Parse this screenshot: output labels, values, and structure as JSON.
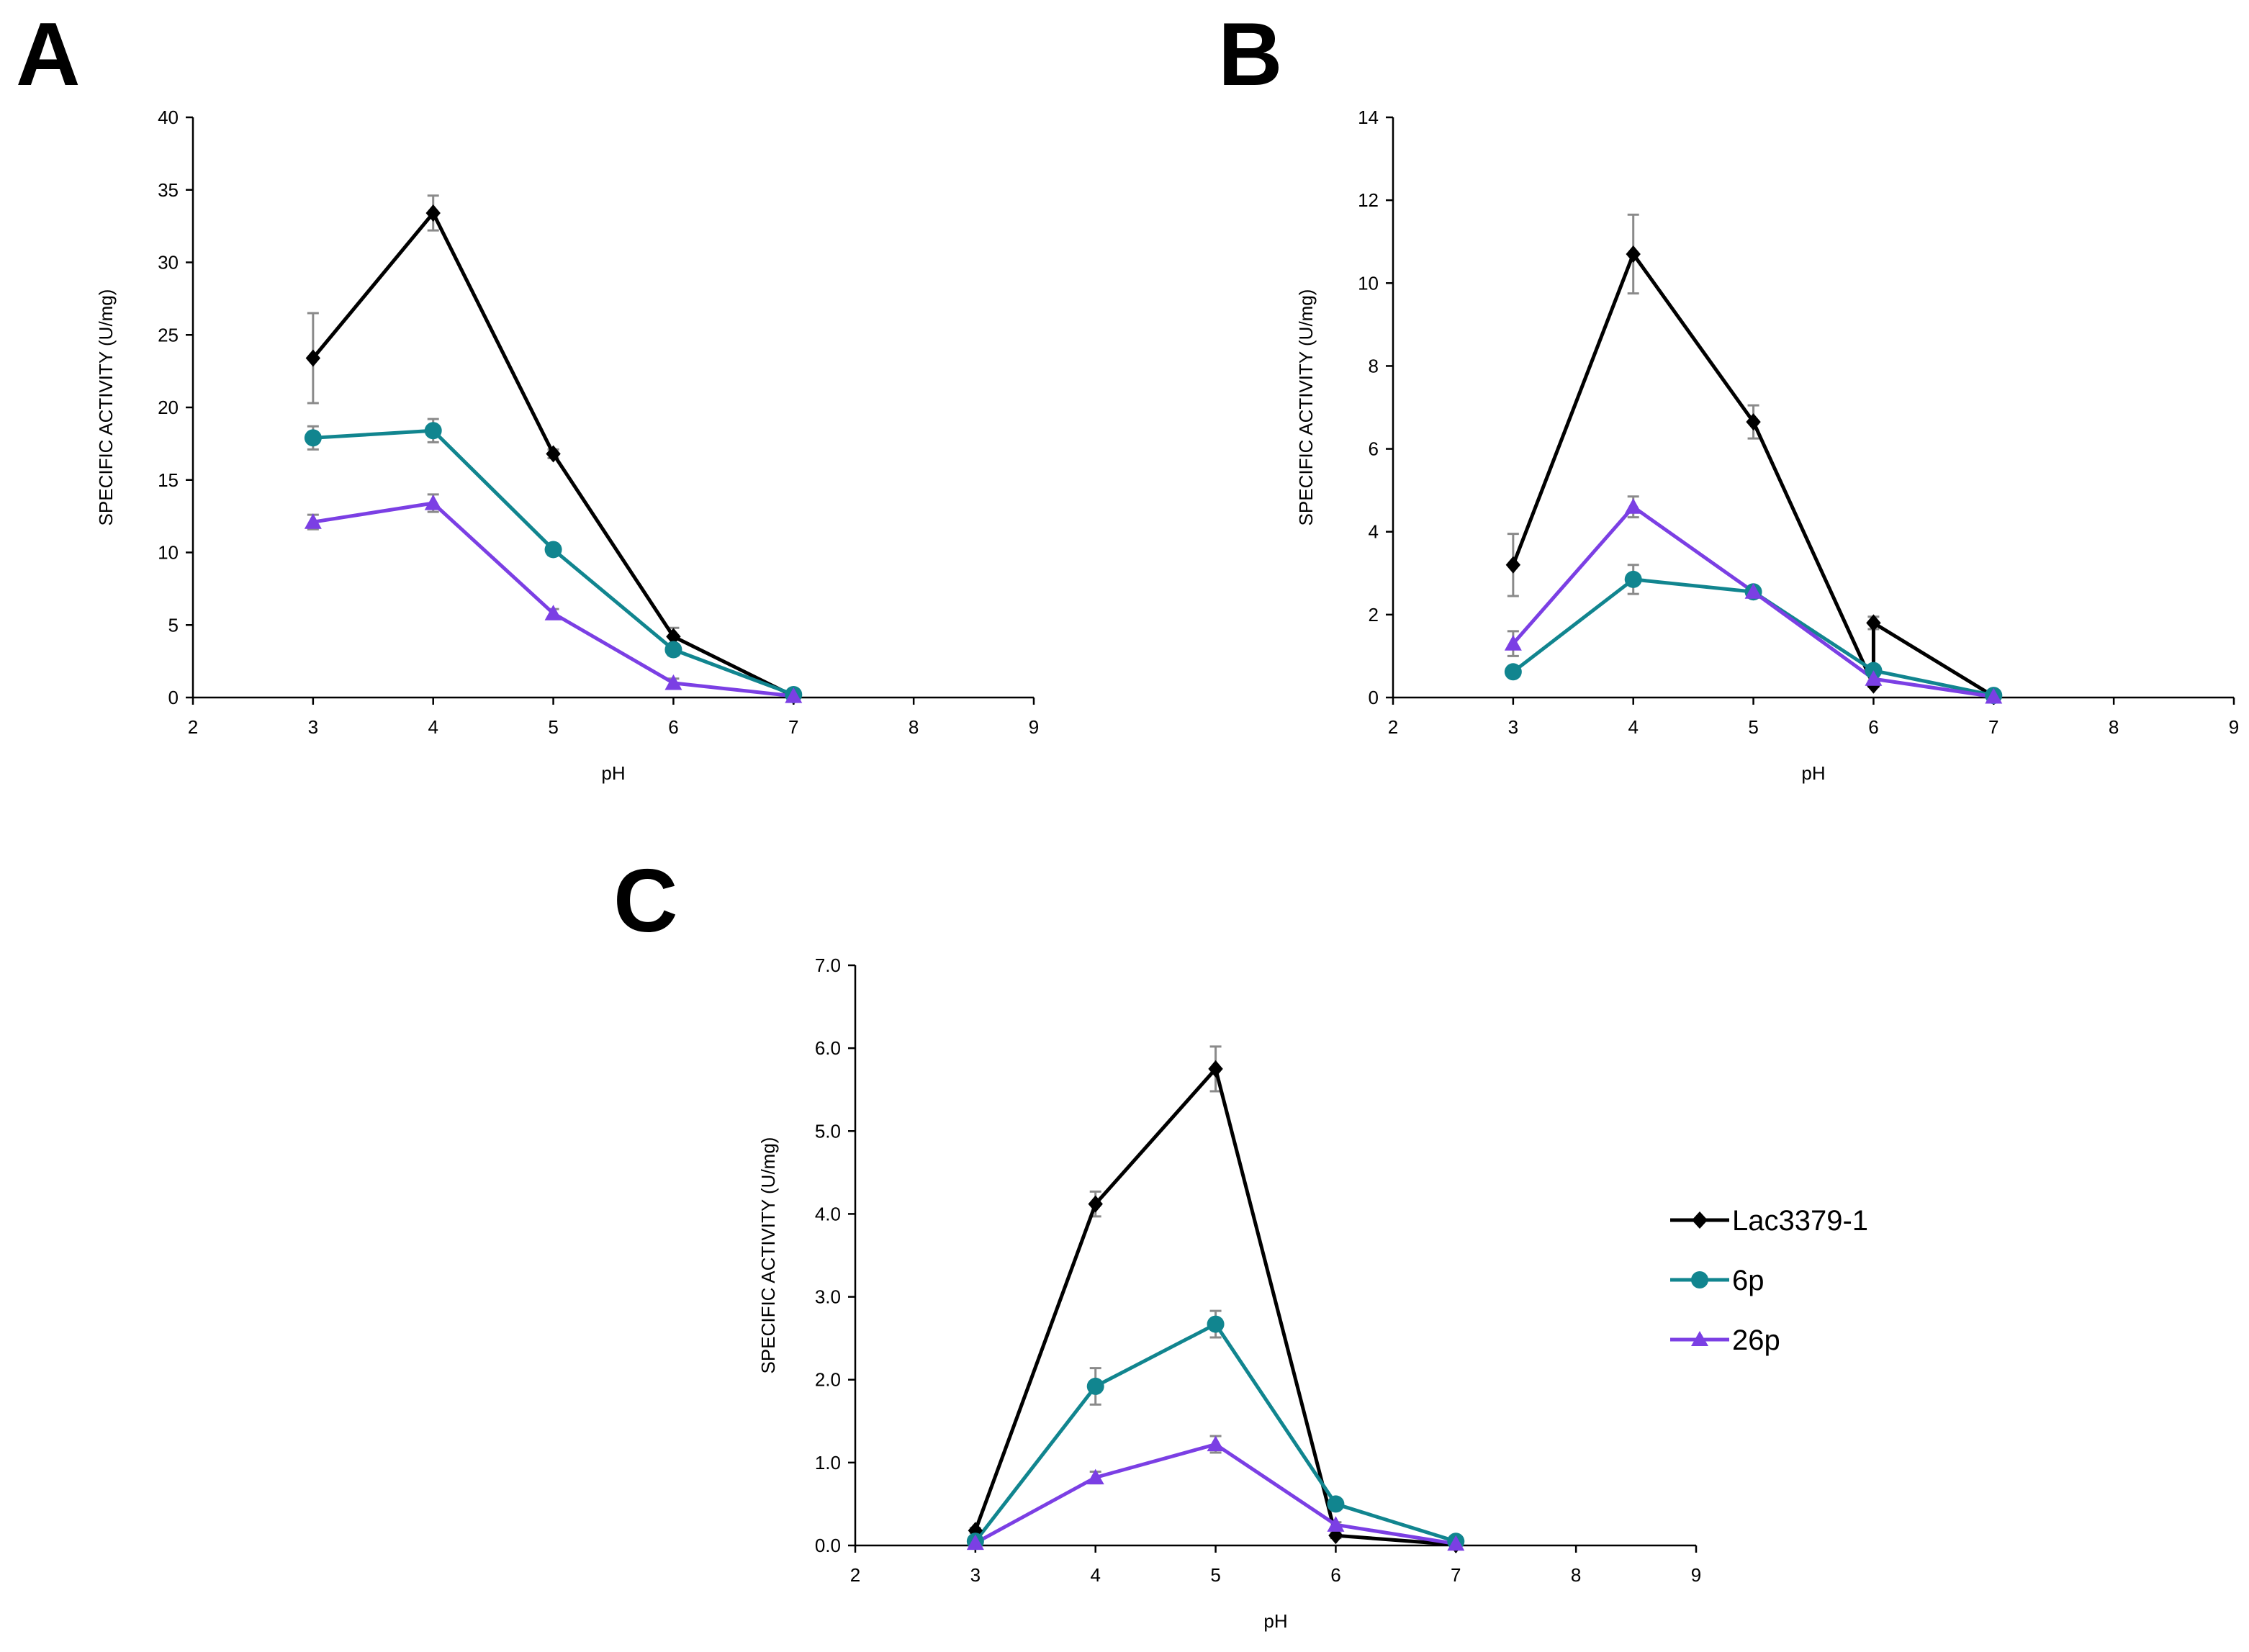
{
  "colors": {
    "Lac3379-1": "#000000",
    "6p": "#11858f",
    "26p": "#7b3fe4"
  },
  "legend": [
    {
      "name": "Lac3379-1",
      "marker": "diamond"
    },
    {
      "name": "6p",
      "marker": "circle"
    },
    {
      "name": "26p",
      "marker": "triangle"
    }
  ],
  "chart_data": [
    {
      "panel": "A",
      "type": "line",
      "xlabel": "pH",
      "ylabel": "SPECIFIC ACTIVITY (U/mg)",
      "xlim": [
        2,
        9
      ],
      "ylim": [
        0,
        40
      ],
      "xticks": [
        "2",
        "3",
        "4",
        "5",
        "6",
        "7",
        "8",
        "9"
      ],
      "yticks": [
        "0",
        "5",
        "10",
        "15",
        "20",
        "25",
        "30",
        "35",
        "40"
      ],
      "x": [
        3,
        4,
        5,
        6,
        7
      ],
      "series": [
        {
          "name": "Lac3379-1",
          "values": [
            23.4,
            33.4,
            16.8,
            4.2,
            0.1
          ],
          "errors": [
            3.1,
            1.2,
            0.3,
            0.6,
            0.1
          ]
        },
        {
          "name": "6p",
          "values": [
            17.9,
            18.4,
            10.2,
            3.3,
            0.2
          ],
          "errors": [
            0.8,
            0.8,
            0.4,
            0.4,
            0.1
          ]
        },
        {
          "name": "26p",
          "values": [
            12.1,
            13.4,
            5.8,
            1.0,
            0.1
          ],
          "errors": [
            0.5,
            0.6,
            0.3,
            0.3,
            0.1
          ]
        }
      ]
    },
    {
      "panel": "B",
      "type": "line",
      "xlabel": "pH",
      "ylabel": "SPECIFIC ACTIVITY (U/mg)",
      "xlim": [
        2,
        9
      ],
      "ylim": [
        0,
        14
      ],
      "xticks": [
        "2",
        "3",
        "4",
        "5",
        "6",
        "7",
        "8",
        "9"
      ],
      "yticks": [
        "0",
        "2",
        "4",
        "6",
        "8",
        "10",
        "12",
        "14"
      ],
      "x": [
        3,
        4,
        5,
        6,
        6,
        7
      ],
      "series": [
        {
          "name": "Lac3379-1",
          "x": [
            3,
            4,
            5,
            6,
            6,
            7
          ],
          "values": [
            3.2,
            10.7,
            6.65,
            0.3,
            1.8,
            0.03
          ],
          "errors": [
            0.75,
            0.95,
            0.4,
            0.05,
            0.15,
            0.03
          ]
        },
        {
          "name": "6p",
          "x": [
            3,
            4,
            5,
            6,
            7
          ],
          "values": [
            0.62,
            2.85,
            2.55,
            0.65,
            0.05
          ],
          "errors": [
            0.05,
            0.35,
            0.1,
            0.1,
            0.03
          ]
        },
        {
          "name": "26p",
          "x": [
            3,
            4,
            5,
            6,
            7
          ],
          "values": [
            1.3,
            4.6,
            2.55,
            0.45,
            0.02
          ],
          "errors": [
            0.3,
            0.25,
            0.1,
            0.05,
            0.02
          ]
        }
      ]
    },
    {
      "panel": "C",
      "type": "line",
      "xlabel": "pH",
      "ylabel": "SPECIFIC ACTIVITY (U/mg)",
      "xlim": [
        2,
        9
      ],
      "ylim": [
        0,
        7
      ],
      "xticks": [
        "2",
        "3",
        "4",
        "5",
        "6",
        "7",
        "8",
        "9"
      ],
      "yticks": [
        "0.0",
        "1.0",
        "2.0",
        "3.0",
        "4.0",
        "5.0",
        "6.0",
        "7.0"
      ],
      "x": [
        3,
        4,
        5,
        6,
        7
      ],
      "series": [
        {
          "name": "Lac3379-1",
          "values": [
            0.18,
            4.12,
            5.75,
            0.12,
            0.01
          ],
          "errors": [
            0.03,
            0.15,
            0.27,
            0.03,
            0.01
          ]
        },
        {
          "name": "6p",
          "values": [
            0.05,
            1.92,
            2.67,
            0.5,
            0.05
          ],
          "errors": [
            0.02,
            0.22,
            0.16,
            0.05,
            0.02
          ]
        },
        {
          "name": "26p",
          "values": [
            0.03,
            0.82,
            1.22,
            0.25,
            0.02
          ],
          "errors": [
            0.02,
            0.07,
            0.1,
            0.03,
            0.01
          ]
        }
      ]
    }
  ]
}
